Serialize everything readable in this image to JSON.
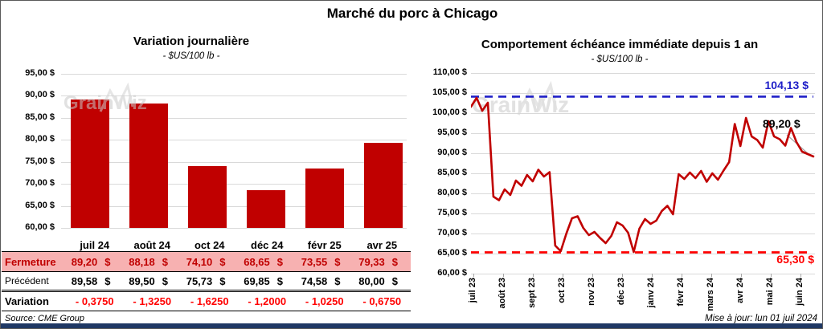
{
  "page": {
    "title": "Marché du porc à Chicago",
    "source": "Source: CME Group",
    "updated": "Mise à jour: lun 01 juil 2024",
    "watermark": "GrainWiz"
  },
  "colors": {
    "bar": "#C00000",
    "line": "#C00000",
    "high_line": "#2020C8",
    "low_line": "#FF0000",
    "fermeture_bg": "#F7B1B1",
    "grid": "#D9D9D9",
    "footer_bar": "#1F3864"
  },
  "bar_chart": {
    "title": "Variation journalière",
    "subtitle": "- $US/100 lb -",
    "y_labels": [
      "95,00 $",
      "90,00 $",
      "85,00 $",
      "80,00 $",
      "75,00 $",
      "70,00 $",
      "65,00 $",
      "60,00 $"
    ]
  },
  "line_chart": {
    "title": "Comportement échéance immédiate depuis 1 an",
    "subtitle": "- $US/100 lb -",
    "y_labels": [
      "110,00 $",
      "105,00 $",
      "100,00 $",
      "95,00 $",
      "90,00 $",
      "85,00 $",
      "80,00 $",
      "75,00 $",
      "70,00 $",
      "65,00 $",
      "60,00 $"
    ],
    "x_labels": [
      "juil 23",
      "août 23",
      "sept 23",
      "oct 23",
      "nov 23",
      "déc 23",
      "janv 24",
      "févr 24",
      "mars 24",
      "avr 24",
      "mai 24",
      "juin 24"
    ],
    "high_label": "104,13 $",
    "low_label": "65,30 $",
    "last_label": "89,20 $"
  },
  "table": {
    "columns": [
      "juil 24",
      "août 24",
      "oct 24",
      "déc 24",
      "févr 25",
      "avr 25"
    ],
    "currency": "$",
    "fermeture": {
      "label": "Fermeture",
      "values": [
        "89,20",
        "88,18",
        "74,10",
        "68,65",
        "73,55",
        "79,33"
      ]
    },
    "precedent": {
      "label": "Précédent",
      "values": [
        "89,58",
        "89,50",
        "75,73",
        "69,85",
        "74,58",
        "80,00"
      ]
    },
    "variation": {
      "label": "Variation",
      "values": [
        "- 0,3750",
        "- 1,3250",
        "- 1,6250",
        "- 1,2000",
        "- 1,0250",
        "- 0,6750"
      ]
    }
  },
  "chart_data": [
    {
      "type": "bar",
      "title": "Variation journalière",
      "subtitle": "- $US/100 lb -",
      "ylabel": "$US/100 lb",
      "categories": [
        "juil 24",
        "août 24",
        "oct 24",
        "déc 24",
        "févr 25",
        "avr 25"
      ],
      "values": [
        89.2,
        88.18,
        74.1,
        68.65,
        73.55,
        79.33
      ],
      "previous": [
        89.58,
        89.5,
        75.73,
        69.85,
        74.58,
        80.0
      ],
      "variation": [
        -0.375,
        -1.325,
        -1.625,
        -1.2,
        -1.025,
        -0.675
      ],
      "ylim": [
        60,
        95
      ],
      "ytick_step": 5,
      "grid": true,
      "bar_color": "#C00000"
    },
    {
      "type": "line",
      "title": "Comportement échéance immédiate depuis 1 an",
      "subtitle": "- $US/100 lb -",
      "ylabel": "$US/100 lb",
      "x_labels": [
        "juil 23",
        "août 23",
        "sept 23",
        "oct 23",
        "nov 23",
        "déc 23",
        "janv 24",
        "févr 24",
        "mars 24",
        "avr 24",
        "mai 24",
        "juin 24"
      ],
      "values": [
        101.6,
        103.8,
        100.6,
        102.6,
        79.2,
        78.3,
        81.0,
        79.6,
        83.2,
        81.9,
        84.6,
        83.0,
        85.9,
        84.2,
        85.3,
        67.0,
        65.6,
        70.0,
        73.8,
        74.3,
        71.4,
        69.6,
        70.4,
        68.9,
        67.6,
        69.4,
        72.8,
        72.0,
        70.2,
        65.4,
        71.2,
        73.6,
        72.4,
        73.2,
        75.6,
        76.9,
        74.8,
        84.8,
        83.6,
        85.2,
        83.8,
        85.6,
        82.9,
        85.0,
        83.4,
        85.7,
        87.8,
        97.3,
        91.8,
        98.8,
        94.2,
        93.3,
        91.4,
        98.0,
        94.2,
        93.5,
        91.9,
        96.3,
        92.8,
        90.4,
        89.8,
        89.2
      ],
      "ylim": [
        60,
        110
      ],
      "ytick_step": 5,
      "grid": true,
      "line_color": "#C00000",
      "legend": "none",
      "reference_lines": [
        {
          "value": 104.13,
          "label": "104,13 $",
          "color": "#2020C8",
          "style": "dashed"
        },
        {
          "value": 65.3,
          "label": "65,30 $",
          "color": "#FF0000",
          "style": "dashed"
        }
      ],
      "last_value": 89.2,
      "last_label": "89,20 $"
    }
  ]
}
